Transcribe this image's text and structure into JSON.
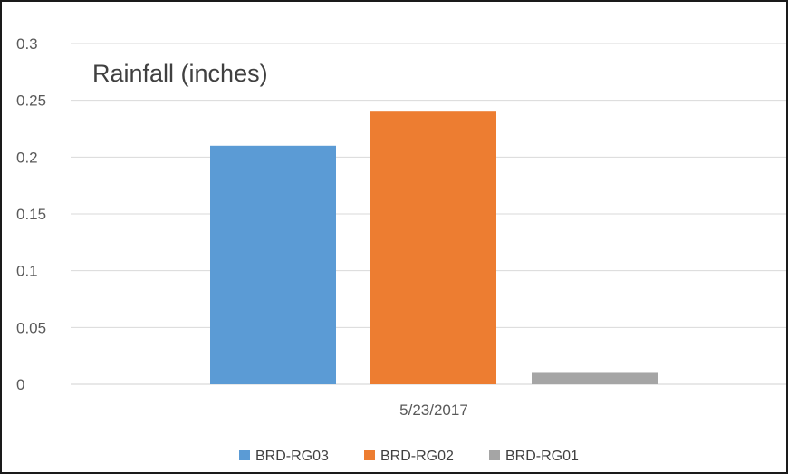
{
  "chart_data": {
    "type": "bar",
    "title": "Rainfall (inches)",
    "categories": [
      "5/23/2017"
    ],
    "series": [
      {
        "name": "BRD-RG03",
        "values": [
          0.21
        ],
        "color": "#5B9BD5"
      },
      {
        "name": "BRD-RG02",
        "values": [
          0.24
        ],
        "color": "#ED7D31"
      },
      {
        "name": "BRD-RG01",
        "values": [
          0.01
        ],
        "color": "#A5A5A5"
      }
    ],
    "ylim": [
      0,
      0.3
    ],
    "yticks": [
      "0",
      "0.05",
      "0.1",
      "0.15",
      "0.2",
      "0.25",
      "0.3"
    ],
    "grid": true,
    "legend": "bottom"
  }
}
